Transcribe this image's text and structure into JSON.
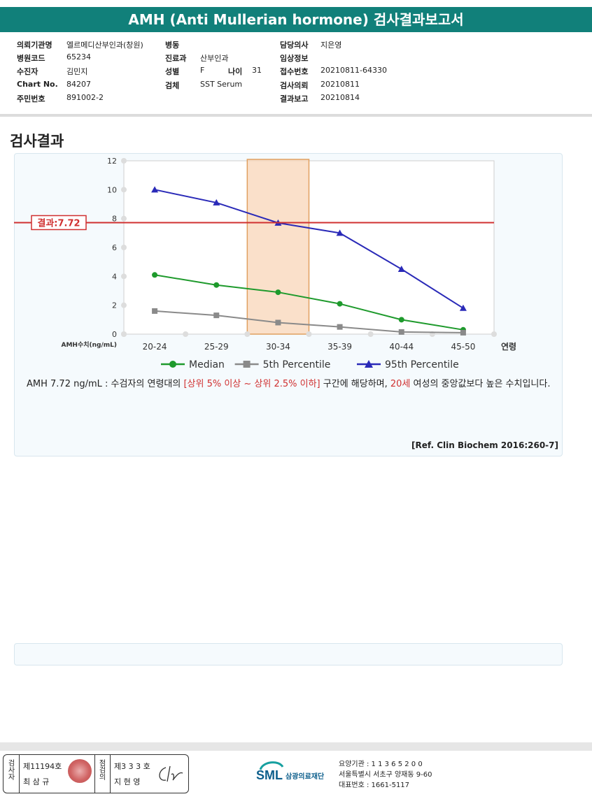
{
  "report_title": "AMH (Anti Mullerian hormone) 검사결과보고서",
  "info": {
    "col1": [
      {
        "label": "의뢰기관명",
        "value": "엘르메디산부인과(창원)"
      },
      {
        "label": "병원코드",
        "value": "65234"
      },
      {
        "label": "수진자",
        "value": "김민지"
      },
      {
        "label": "Chart No.",
        "value": "84207"
      },
      {
        "label": "주민번호",
        "value": "891002-2"
      }
    ],
    "col2": [
      {
        "label": "병동",
        "value": ""
      },
      {
        "label": "진료과",
        "value": "산부인과"
      },
      {
        "label": "성별",
        "value": "F"
      },
      {
        "label": "검체",
        "value": "SST Serum"
      }
    ],
    "age": {
      "label": "나이",
      "value": "31"
    },
    "col3": [
      {
        "label": "담당의사",
        "value": "지은영"
      },
      {
        "label": "임상정보",
        "value": ""
      },
      {
        "label": "접수번호",
        "value": "20210811-64330"
      },
      {
        "label": "검사의뢰",
        "value": "20210811"
      },
      {
        "label": "결과보고",
        "value": "20210814"
      }
    ]
  },
  "section_title": "검사결과",
  "chart_data": {
    "type": "line",
    "categories": [
      "20-24",
      "25-29",
      "30-34",
      "35-39",
      "40-44",
      "45-50"
    ],
    "x_axis_suffix": "연령",
    "ylabel": "AMH수치(ng/mL)",
    "ylim": [
      0,
      12
    ],
    "yticks": [
      "0",
      "2",
      "4",
      "6",
      "8",
      "10",
      "12"
    ],
    "highlight_category": "30-34",
    "result_value": 7.72,
    "result_label": "결과:7.72",
    "series": [
      {
        "name": "Median",
        "color": "#1e9a2c",
        "marker": "circle",
        "values": [
          4.1,
          3.4,
          2.9,
          2.1,
          1.0,
          0.3
        ]
      },
      {
        "name": "5th Percentile",
        "color": "#8a8a8a",
        "marker": "square",
        "values": [
          1.6,
          1.3,
          0.8,
          0.5,
          0.15,
          0.1
        ]
      },
      {
        "name": "95th Percentile",
        "color": "#2a2ab8",
        "marker": "triangle",
        "values": [
          10.0,
          9.1,
          7.7,
          7.0,
          4.5,
          1.8
        ]
      }
    ]
  },
  "description": {
    "part1": "AMH  7.72 ng/mL : 수검자의 연령대의 ",
    "red1": "[상위 5% 이상 ~ 상위 2.5% 이하]",
    "part2": "  구간에 해당하며, ",
    "red2": "20세",
    "part3": " 여성의 중앙값보다 높은 수치입니다."
  },
  "reference": "[Ref. Clin Biochem 2016:260-7]",
  "footer": {
    "inspector_label": "검사자",
    "inspector_no": "제11194호",
    "inspector_name": "최 삼 규",
    "approver_label": "점검의",
    "approver_no": "제3 3 3 호",
    "approver_name": "지 현 영",
    "logo_text": "SML",
    "foundation_name": "삼광의료재단",
    "org_line1": "요양기관 : 1 1 3 6 5 2 0 0",
    "org_line2": "서울특별시 서초구 양재동 9-60",
    "org_line3": "대표번호 : 1661-5117"
  }
}
